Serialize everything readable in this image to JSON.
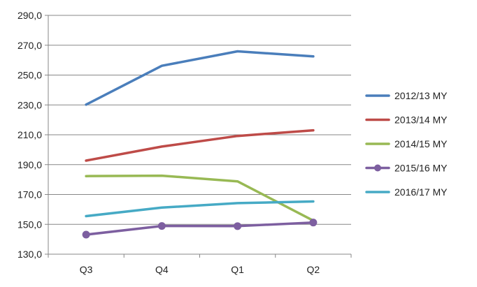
{
  "chart_data": {
    "type": "line",
    "categories": [
      "Q3",
      "Q4",
      "Q1",
      "Q2"
    ],
    "ylim": [
      130,
      290
    ],
    "yticks": [
      "290,0",
      "270,0",
      "250,0",
      "230,0",
      "210,0",
      "190,0",
      "170,0",
      "150,0",
      "130,0"
    ],
    "ytick_values": [
      290,
      270,
      250,
      230,
      210,
      190,
      170,
      150,
      130
    ],
    "grid": "horizontal",
    "legend_position": "right",
    "series": [
      {
        "name": "2012/13 MY",
        "color": "#4A7EBB",
        "marker": "none",
        "values": [
          230.2,
          256.2,
          265.9,
          262.5
        ]
      },
      {
        "name": "2013/14 MY",
        "color": "#BE4B48",
        "marker": "none",
        "values": [
          192.7,
          202.1,
          209.2,
          213.0
        ]
      },
      {
        "name": "2014/15 MY",
        "color": "#98B954",
        "marker": "none",
        "values": [
          182.3,
          182.6,
          178.8,
          152.5
        ]
      },
      {
        "name": "2015/16 MY",
        "color": "#7D5FA0",
        "marker": "circle",
        "values": [
          143.1,
          148.9,
          148.8,
          151.2
        ]
      },
      {
        "name": "2016/17 MY",
        "color": "#46AAC5",
        "marker": "none",
        "values": [
          155.5,
          161.2,
          164.2,
          165.3
        ]
      }
    ]
  }
}
